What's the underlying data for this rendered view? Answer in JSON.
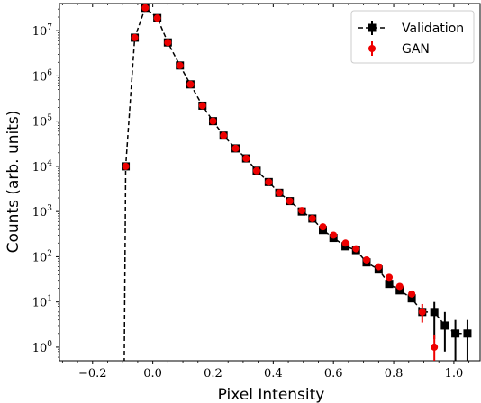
{
  "chart_data": {
    "type": "scatter",
    "xlabel": "Pixel Intensity",
    "ylabel": "Counts (arb. units)",
    "xlim": [
      -0.31,
      1.09
    ],
    "ylim_log10": [
      -0.3,
      7.6
    ],
    "y_scale": "log",
    "grid": false,
    "legend_position": "top-right",
    "x_ticks": [
      -0.2,
      0.0,
      0.2,
      0.4,
      0.6,
      0.8,
      1.0
    ],
    "x_tick_labels": [
      "−0.2",
      "0.0",
      "0.2",
      "0.4",
      "0.6",
      "0.8",
      "1.0"
    ],
    "y_tick_exponents": [
      0,
      1,
      2,
      3,
      4,
      5,
      6,
      7
    ],
    "y_tick_base": "10",
    "series": [
      {
        "name": "Validation",
        "color": "#000000",
        "marker": "square",
        "linestyle": "dashed",
        "points": [
          {
            "x": -0.095,
            "y": 1e-06
          },
          {
            "x": -0.09,
            "y": 10000
          },
          {
            "x": -0.06,
            "y": 7000000
          },
          {
            "x": -0.025,
            "y": 32000000
          },
          {
            "x": 0.015,
            "y": 19000000
          },
          {
            "x": 0.05,
            "y": 5500000
          },
          {
            "x": 0.09,
            "y": 1700000
          },
          {
            "x": 0.125,
            "y": 650000
          },
          {
            "x": 0.165,
            "y": 220000
          },
          {
            "x": 0.2,
            "y": 100000
          },
          {
            "x": 0.235,
            "y": 48000
          },
          {
            "x": 0.275,
            "y": 25000
          },
          {
            "x": 0.31,
            "y": 15000
          },
          {
            "x": 0.345,
            "y": 8000
          },
          {
            "x": 0.385,
            "y": 4500
          },
          {
            "x": 0.42,
            "y": 2600
          },
          {
            "x": 0.455,
            "y": 1700
          },
          {
            "x": 0.495,
            "y": 1000
          },
          {
            "x": 0.53,
            "y": 700
          },
          {
            "x": 0.565,
            "y": 390
          },
          {
            "x": 0.6,
            "y": 260
          },
          {
            "x": 0.64,
            "y": 170
          },
          {
            "x": 0.675,
            "y": 140
          },
          {
            "x": 0.71,
            "y": 75
          },
          {
            "x": 0.75,
            "y": 52
          },
          {
            "x": 0.785,
            "y": 25
          },
          {
            "x": 0.82,
            "y": 18
          },
          {
            "x": 0.86,
            "y": 12
          },
          {
            "x": 0.895,
            "y": 6
          },
          {
            "x": 0.935,
            "y": 6,
            "err": [
              4.5,
              4
            ]
          },
          {
            "x": 0.97,
            "y": 3,
            "err": [
              2.2,
              3
            ]
          },
          {
            "x": 1.005,
            "y": 2,
            "err": [
              1.5,
              2
            ]
          },
          {
            "x": 1.045,
            "y": 2,
            "err": [
              1.5,
              2
            ]
          }
        ]
      },
      {
        "name": "GAN",
        "color": "#ee0000",
        "marker": "circle",
        "linestyle": "none",
        "points": [
          {
            "x": -0.09,
            "y": 10000
          },
          {
            "x": -0.06,
            "y": 7000000
          },
          {
            "x": -0.025,
            "y": 32000000
          },
          {
            "x": 0.015,
            "y": 19000000
          },
          {
            "x": 0.05,
            "y": 5500000
          },
          {
            "x": 0.09,
            "y": 1700000
          },
          {
            "x": 0.125,
            "y": 650000
          },
          {
            "x": 0.165,
            "y": 220000
          },
          {
            "x": 0.2,
            "y": 100000
          },
          {
            "x": 0.235,
            "y": 48000
          },
          {
            "x": 0.275,
            "y": 25000
          },
          {
            "x": 0.31,
            "y": 15000
          },
          {
            "x": 0.345,
            "y": 8000
          },
          {
            "x": 0.385,
            "y": 4500
          },
          {
            "x": 0.42,
            "y": 2600
          },
          {
            "x": 0.455,
            "y": 1700
          },
          {
            "x": 0.495,
            "y": 1050
          },
          {
            "x": 0.53,
            "y": 700
          },
          {
            "x": 0.565,
            "y": 460
          },
          {
            "x": 0.6,
            "y": 300
          },
          {
            "x": 0.64,
            "y": 200
          },
          {
            "x": 0.675,
            "y": 150
          },
          {
            "x": 0.71,
            "y": 85
          },
          {
            "x": 0.75,
            "y": 60
          },
          {
            "x": 0.785,
            "y": 35
          },
          {
            "x": 0.82,
            "y": 22
          },
          {
            "x": 0.86,
            "y": 15
          },
          {
            "x": 0.895,
            "y": 6,
            "err": [
              2.5,
              3
            ]
          },
          {
            "x": 0.935,
            "y": 1,
            "err": [
              0.65,
              0.9
            ]
          }
        ]
      }
    ]
  }
}
